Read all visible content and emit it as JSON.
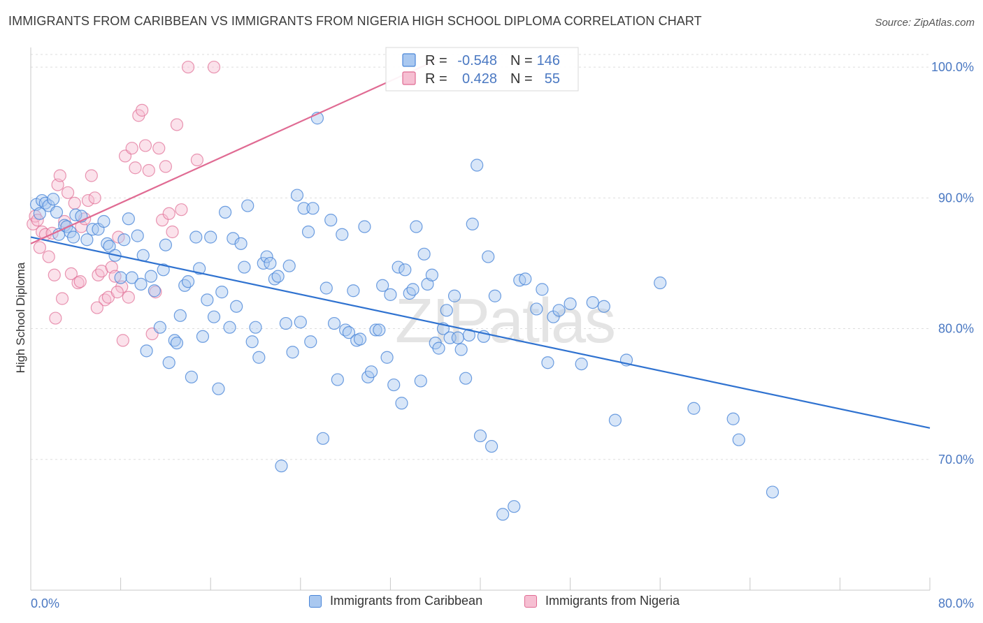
{
  "title": "IMMIGRANTS FROM CARIBBEAN VS IMMIGRANTS FROM NIGERIA HIGH SCHOOL DIPLOMA CORRELATION CHART",
  "source": "Source: ZipAtlas.com",
  "watermark": "ZIPatlas",
  "stats": [
    {
      "r_label": "R =",
      "r_value": "-0.548",
      "n_label": "N =",
      "n_value": "146",
      "color": "#4a78c2"
    },
    {
      "r_label": "R =",
      "r_value": "0.428",
      "n_label": "N =",
      "n_value": "55",
      "color": "#4a78c2"
    }
  ],
  "chart_data": {
    "type": "scatter",
    "xlabel": "",
    "ylabel": "High School Diploma",
    "xlim": [
      0,
      80
    ],
    "ylim": [
      60,
      101.5
    ],
    "x_tick_labels": [
      "0.0%",
      "80.0%"
    ],
    "y_ticks": [
      70,
      80,
      90,
      100
    ],
    "y_tick_labels": [
      "70.0%",
      "80.0%",
      "90.0%",
      "100.0%"
    ],
    "grid": true,
    "legend_position": "bottom",
    "series": [
      {
        "name": "Immigrants from Caribbean",
        "color": "#4a86d8",
        "fill": "#a9c8f0",
        "trend": [
          [
            0,
            87.0
          ],
          [
            80,
            72.4
          ]
        ],
        "points": [
          [
            0.5,
            89.5
          ],
          [
            0.8,
            88.8
          ],
          [
            1.0,
            89.8
          ],
          [
            1.3,
            89.6
          ],
          [
            1.6,
            89.4
          ],
          [
            2.0,
            89.9
          ],
          [
            2.3,
            88.9
          ],
          [
            2.5,
            87.2
          ],
          [
            3.0,
            87.9
          ],
          [
            3.2,
            87.8
          ],
          [
            3.5,
            87.4
          ],
          [
            3.8,
            87.0
          ],
          [
            4.0,
            88.7
          ],
          [
            4.5,
            88.6
          ],
          [
            5.0,
            86.8
          ],
          [
            5.5,
            87.6
          ],
          [
            6.0,
            87.6
          ],
          [
            6.5,
            88.2
          ],
          [
            6.8,
            86.5
          ],
          [
            7.0,
            86.3
          ],
          [
            7.5,
            85.6
          ],
          [
            8.0,
            83.9
          ],
          [
            8.3,
            86.8
          ],
          [
            8.7,
            88.4
          ],
          [
            9.0,
            83.9
          ],
          [
            9.5,
            87.1
          ],
          [
            9.8,
            83.4
          ],
          [
            10.0,
            85.6
          ],
          [
            10.3,
            78.3
          ],
          [
            10.7,
            84.0
          ],
          [
            11.0,
            82.9
          ],
          [
            11.5,
            80.1
          ],
          [
            11.8,
            84.5
          ],
          [
            12.0,
            86.4
          ],
          [
            12.3,
            77.4
          ],
          [
            12.8,
            79.1
          ],
          [
            13.0,
            78.9
          ],
          [
            13.3,
            81.0
          ],
          [
            13.7,
            83.3
          ],
          [
            14.0,
            83.6
          ],
          [
            14.3,
            76.3
          ],
          [
            14.7,
            87.0
          ],
          [
            15.0,
            84.6
          ],
          [
            15.3,
            79.4
          ],
          [
            15.7,
            82.2
          ],
          [
            16.0,
            87.0
          ],
          [
            16.3,
            80.9
          ],
          [
            16.7,
            75.4
          ],
          [
            17.0,
            82.8
          ],
          [
            17.3,
            88.9
          ],
          [
            17.7,
            80.1
          ],
          [
            18.0,
            86.9
          ],
          [
            18.3,
            81.7
          ],
          [
            18.7,
            86.5
          ],
          [
            19.0,
            84.7
          ],
          [
            19.3,
            89.4
          ],
          [
            19.7,
            79.0
          ],
          [
            20.0,
            80.1
          ],
          [
            20.3,
            77.8
          ],
          [
            20.7,
            85.0
          ],
          [
            21.0,
            85.5
          ],
          [
            21.3,
            85.0
          ],
          [
            21.7,
            83.8
          ],
          [
            22.0,
            84.0
          ],
          [
            22.3,
            69.5
          ],
          [
            22.7,
            80.4
          ],
          [
            23.0,
            84.8
          ],
          [
            23.3,
            78.2
          ],
          [
            23.7,
            90.2
          ],
          [
            24.0,
            80.5
          ],
          [
            24.3,
            89.2
          ],
          [
            24.7,
            87.4
          ],
          [
            24.9,
            79.0
          ],
          [
            25.1,
            89.2
          ],
          [
            25.5,
            96.1
          ],
          [
            26.0,
            71.6
          ],
          [
            26.3,
            83.1
          ],
          [
            26.7,
            88.3
          ],
          [
            27.0,
            80.4
          ],
          [
            27.3,
            76.1
          ],
          [
            27.7,
            87.2
          ],
          [
            28.0,
            79.9
          ],
          [
            28.3,
            79.7
          ],
          [
            28.7,
            82.9
          ],
          [
            29.0,
            79.1
          ],
          [
            29.3,
            79.2
          ],
          [
            29.7,
            87.8
          ],
          [
            30.0,
            76.3
          ],
          [
            30.3,
            76.7
          ],
          [
            30.7,
            79.9
          ],
          [
            31.0,
            79.9
          ],
          [
            31.3,
            83.3
          ],
          [
            31.7,
            77.8
          ],
          [
            32.0,
            82.6
          ],
          [
            32.3,
            75.7
          ],
          [
            32.7,
            84.7
          ],
          [
            33.0,
            74.3
          ],
          [
            33.3,
            84.5
          ],
          [
            33.7,
            82.7
          ],
          [
            34.0,
            83.0
          ],
          [
            34.3,
            87.8
          ],
          [
            34.7,
            76.0
          ],
          [
            35.0,
            85.7
          ],
          [
            35.3,
            83.4
          ],
          [
            35.7,
            84.1
          ],
          [
            36.0,
            78.9
          ],
          [
            36.3,
            78.5
          ],
          [
            36.7,
            80.0
          ],
          [
            37.0,
            81.4
          ],
          [
            37.3,
            79.3
          ],
          [
            37.7,
            82.5
          ],
          [
            38.0,
            79.3
          ],
          [
            38.3,
            78.4
          ],
          [
            38.7,
            76.2
          ],
          [
            39.0,
            79.5
          ],
          [
            39.3,
            88.0
          ],
          [
            39.7,
            92.5
          ],
          [
            40.0,
            71.8
          ],
          [
            40.3,
            79.4
          ],
          [
            40.7,
            85.5
          ],
          [
            41.0,
            71.0
          ],
          [
            41.3,
            82.5
          ],
          [
            42.0,
            65.8
          ],
          [
            43.0,
            66.4
          ],
          [
            43.5,
            83.7
          ],
          [
            44.0,
            83.8
          ],
          [
            45.0,
            81.5
          ],
          [
            45.5,
            83.0
          ],
          [
            46.0,
            77.4
          ],
          [
            46.5,
            80.9
          ],
          [
            47.0,
            81.4
          ],
          [
            48.0,
            81.9
          ],
          [
            49.0,
            77.3
          ],
          [
            50.0,
            82.0
          ],
          [
            51.0,
            81.7
          ],
          [
            52.0,
            73.0
          ],
          [
            53.0,
            77.6
          ],
          [
            56.0,
            83.5
          ],
          [
            59.0,
            73.9
          ],
          [
            62.5,
            73.1
          ],
          [
            63.0,
            71.5
          ],
          [
            66.0,
            67.5
          ]
        ]
      },
      {
        "name": "Immigrants from Nigeria",
        "color": "#e06b93",
        "fill": "#f6bfd2",
        "trend": [
          [
            0,
            86.5
          ],
          [
            36,
            100.5
          ]
        ],
        "points": [
          [
            0.2,
            88.0
          ],
          [
            0.4,
            88.6
          ],
          [
            0.6,
            88.3
          ],
          [
            0.8,
            86.2
          ],
          [
            1.0,
            87.4
          ],
          [
            1.3,
            87.2
          ],
          [
            1.6,
            85.5
          ],
          [
            1.9,
            87.3
          ],
          [
            2.1,
            84.1
          ],
          [
            2.2,
            80.8
          ],
          [
            2.4,
            91.0
          ],
          [
            2.6,
            91.7
          ],
          [
            2.8,
            82.3
          ],
          [
            3.0,
            88.2
          ],
          [
            3.3,
            90.4
          ],
          [
            3.6,
            84.2
          ],
          [
            3.9,
            89.6
          ],
          [
            4.2,
            83.5
          ],
          [
            4.5,
            87.8
          ],
          [
            4.8,
            88.4
          ],
          [
            5.1,
            89.8
          ],
          [
            5.4,
            91.7
          ],
          [
            5.7,
            90.0
          ],
          [
            6.0,
            84.1
          ],
          [
            6.3,
            84.4
          ],
          [
            6.6,
            82.2
          ],
          [
            6.9,
            82.4
          ],
          [
            7.2,
            84.7
          ],
          [
            7.5,
            84.0
          ],
          [
            7.8,
            87.0
          ],
          [
            8.1,
            83.2
          ],
          [
            8.4,
            93.2
          ],
          [
            8.7,
            82.4
          ],
          [
            9.0,
            93.8
          ],
          [
            9.3,
            92.3
          ],
          [
            9.6,
            96.3
          ],
          [
            9.9,
            96.7
          ],
          [
            10.2,
            94.0
          ],
          [
            10.5,
            92.1
          ],
          [
            10.8,
            79.6
          ],
          [
            11.1,
            82.8
          ],
          [
            11.4,
            93.8
          ],
          [
            11.7,
            88.3
          ],
          [
            12.0,
            92.4
          ],
          [
            12.3,
            88.8
          ],
          [
            12.6,
            87.4
          ],
          [
            13.0,
            95.6
          ],
          [
            13.4,
            89.1
          ],
          [
            14.0,
            100.0
          ],
          [
            14.8,
            92.9
          ],
          [
            16.3,
            100.0
          ],
          [
            7.7,
            82.8
          ],
          [
            8.2,
            79.1
          ],
          [
            5.9,
            81.6
          ],
          [
            4.4,
            83.6
          ]
        ]
      }
    ]
  },
  "legend": {
    "caribbean": "Immigrants from Caribbean",
    "nigeria": "Immigrants from Nigeria"
  }
}
